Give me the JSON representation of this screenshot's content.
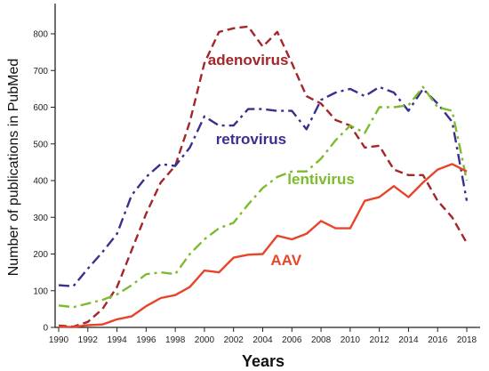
{
  "chart_data": {
    "type": "line",
    "xlabel": "Years",
    "ylabel": "Number of publications in PubMed",
    "xlim": [
      1990,
      2018
    ],
    "ylim": [
      0,
      850
    ],
    "x_ticks": [
      "1990",
      "1992",
      "1994",
      "1996",
      "1998",
      "2000",
      "2002",
      "2004",
      "2006",
      "2008",
      "2010",
      "2012",
      "2014",
      "2016",
      "2018"
    ],
    "y_ticks": [
      "0",
      "100",
      "200",
      "300",
      "400",
      "500",
      "600",
      "700",
      "800"
    ],
    "grid": false,
    "x": [
      1990,
      1991,
      1992,
      1993,
      1994,
      1995,
      1996,
      1997,
      1998,
      1999,
      2000,
      2001,
      2002,
      2003,
      2004,
      2005,
      2006,
      2007,
      2008,
      2009,
      2010,
      2011,
      2012,
      2013,
      2014,
      2015,
      2016,
      2017,
      2018
    ],
    "series": [
      {
        "name": "adenovirus",
        "color": "#a3262b",
        "dash": "dashed",
        "values": [
          5,
          2,
          15,
          50,
          110,
          210,
          310,
          395,
          440,
          560,
          720,
          805,
          815,
          820,
          765,
          805,
          720,
          630,
          610,
          565,
          550,
          490,
          495,
          430,
          415,
          415,
          345,
          300,
          230
        ]
      },
      {
        "name": "retrovirus",
        "color": "#3a2f8f",
        "dash": "dashdot",
        "values": [
          115,
          112,
          160,
          205,
          255,
          360,
          410,
          445,
          440,
          490,
          575,
          550,
          550,
          595,
          595,
          590,
          590,
          540,
          620,
          640,
          650,
          630,
          655,
          640,
          590,
          650,
          610,
          560,
          345
        ]
      },
      {
        "name": "lentivirus",
        "color": "#7dbb2e",
        "dash": "dashdot",
        "values": [
          60,
          55,
          65,
          75,
          90,
          115,
          145,
          150,
          145,
          200,
          240,
          270,
          285,
          335,
          380,
          410,
          425,
          425,
          460,
          510,
          550,
          530,
          600,
          600,
          605,
          655,
          600,
          590,
          400
        ]
      },
      {
        "name": "AAV",
        "color": "#e8442a",
        "dash": "solid",
        "values": [
          2,
          1,
          6,
          8,
          22,
          30,
          58,
          80,
          88,
          110,
          155,
          150,
          190,
          198,
          200,
          250,
          240,
          255,
          290,
          270,
          270,
          345,
          355,
          385,
          355,
          395,
          430,
          445,
          425
        ]
      }
    ]
  }
}
